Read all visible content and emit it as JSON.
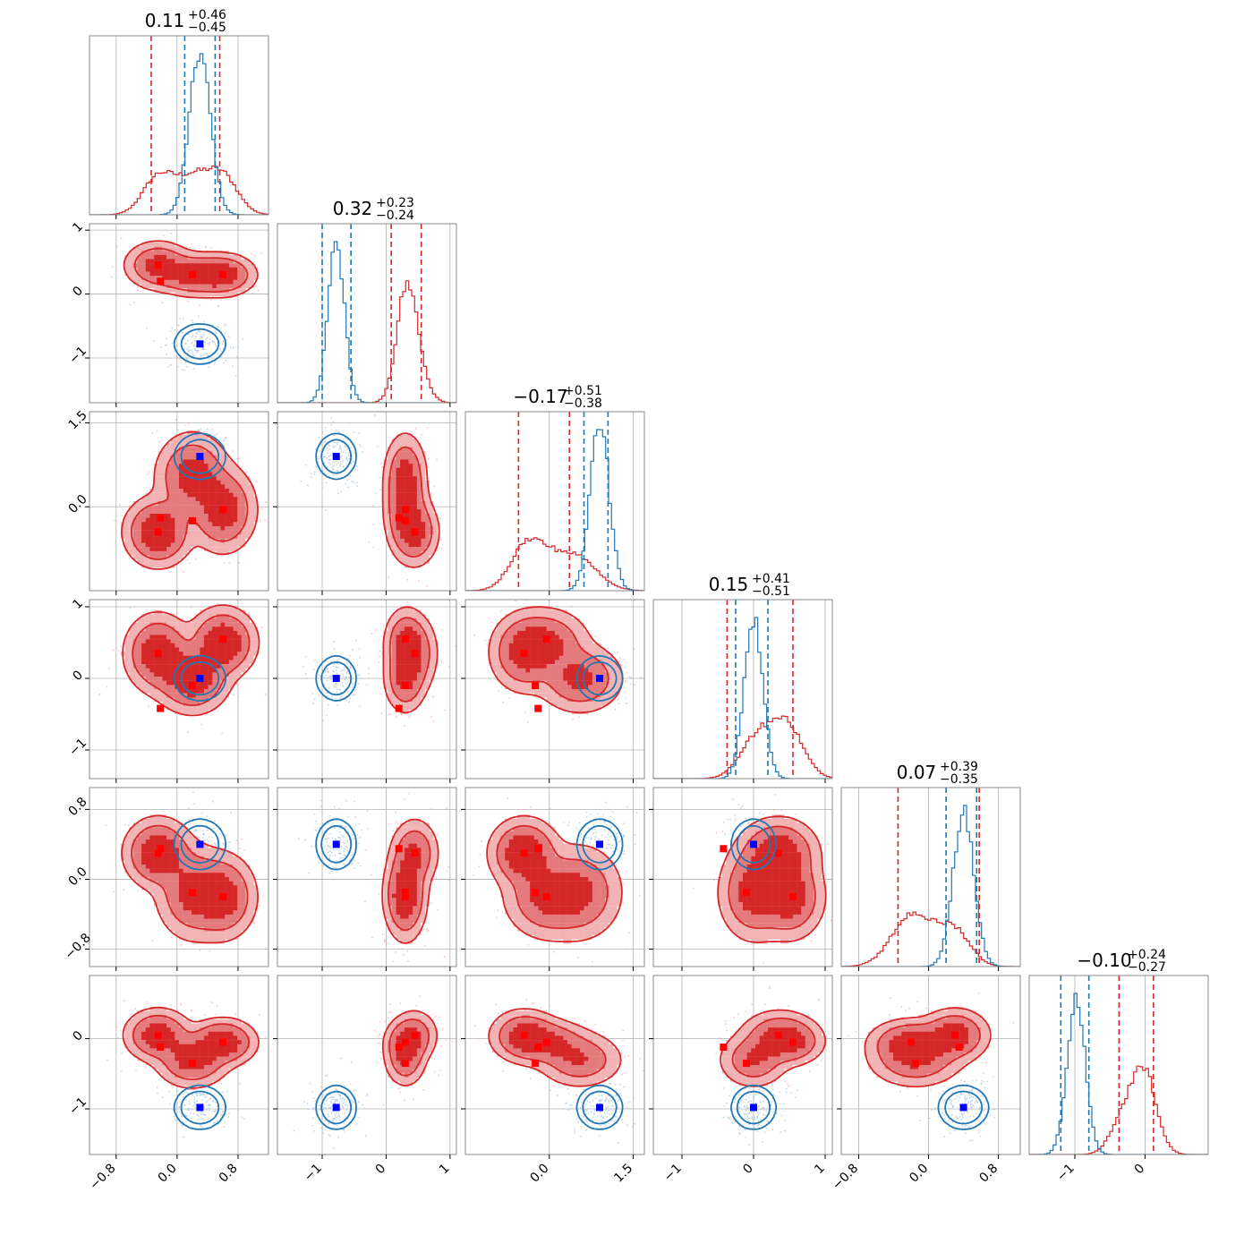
{
  "colors": {
    "red": "#d62728",
    "blue": "#1f77b4",
    "red_marker": "#ff0000",
    "blue_marker": "#0000ff",
    "grid": "#b0b0b0",
    "axis": "#000000"
  },
  "chart_data": {
    "type": "corner",
    "grid": true,
    "ranges": [
      [
        -1.15,
        1.2
      ],
      [
        -1.7,
        1.1
      ],
      [
        -1.5,
        1.7
      ],
      [
        -1.4,
        1.1
      ],
      [
        -1.0,
        1.05
      ],
      [
        -1.65,
        0.9
      ]
    ],
    "ticks": [
      [
        {
          "v": -0.8,
          "label": "−0.8"
        },
        {
          "v": 0.0,
          "label": "0.0"
        },
        {
          "v": 0.8,
          "label": "0.8"
        }
      ],
      [
        {
          "v": -1,
          "label": "−1"
        },
        {
          "v": 0,
          "label": "0"
        },
        {
          "v": 1,
          "label": "1"
        }
      ],
      [
        {
          "v": 0.0,
          "label": "0.0"
        },
        {
          "v": 1.5,
          "label": "1.5"
        }
      ],
      [
        {
          "v": -1,
          "label": "−1"
        },
        {
          "v": 0,
          "label": "0"
        },
        {
          "v": 1,
          "label": "1"
        }
      ],
      [
        {
          "v": -0.8,
          "label": "−0.8"
        },
        {
          "v": 0.0,
          "label": "0.0"
        },
        {
          "v": 0.8,
          "label": "0.8"
        }
      ],
      [
        {
          "v": -1,
          "label": "−1"
        },
        {
          "v": 0,
          "label": "0"
        }
      ]
    ],
    "titles": [
      {
        "median": "0.11",
        "plus": "+0.46",
        "minus": "−0.45"
      },
      {
        "median": "0.32",
        "plus": "+0.23",
        "minus": "−0.24"
      },
      {
        "median": "−0.17",
        "plus": "+0.51",
        "minus": "−0.38"
      },
      {
        "median": "0.15",
        "plus": "+0.41",
        "minus": "−0.51"
      },
      {
        "median": "0.07",
        "plus": "+0.39",
        "minus": "−0.35"
      },
      {
        "median": "−0.10",
        "plus": "+0.24",
        "minus": "−0.27"
      }
    ],
    "series": [
      {
        "color": "red",
        "filled": true,
        "quantiles": [
          [
            -0.34,
            0.56
          ],
          [
            0.08,
            0.55
          ],
          [
            -0.55,
            0.36
          ],
          [
            -0.37,
            0.55
          ],
          [
            -0.35,
            0.58
          ],
          [
            -0.37,
            0.12
          ]
        ],
        "components": [
          {
            "mean": [
              -0.25,
              0.45,
              -0.45,
              0.35,
              0.3,
              0.05
            ],
            "sd": [
              0.2,
              0.17,
              0.28,
              0.25,
              0.18,
              0.17
            ],
            "w": 0.33
          },
          {
            "mean": [
              0.2,
              0.3,
              0.55,
              0.0,
              -0.15,
              -0.3
            ],
            "sd": [
              0.22,
              0.15,
              0.35,
              0.22,
              0.25,
              0.18
            ],
            "w": 0.34
          },
          {
            "mean": [
              0.6,
              0.3,
              -0.05,
              0.5,
              -0.2,
              -0.05
            ],
            "sd": [
              0.2,
              0.15,
              0.35,
              0.22,
              0.22,
              0.15
            ],
            "w": 0.33
          }
        ],
        "markers": [
          [
            -0.25,
            0.45,
            -0.45,
            0.35,
            0.3,
            0.05
          ],
          [
            -0.22,
            0.2,
            -0.2,
            -0.42,
            0.35,
            -0.12
          ],
          [
            0.2,
            0.3,
            -0.25,
            -0.1,
            -0.15,
            -0.35
          ],
          [
            0.6,
            0.3,
            -0.05,
            0.55,
            -0.2,
            -0.05
          ]
        ]
      },
      {
        "color": "blue",
        "filled": false,
        "quantiles": [
          [
            0.1,
            0.5
          ],
          [
            -1.0,
            -0.55
          ],
          [
            0.62,
            1.05
          ],
          [
            -0.25,
            0.2
          ],
          [
            0.2,
            0.55
          ],
          [
            -1.2,
            -0.8
          ]
        ],
        "components": [
          {
            "mean": [
              0.3,
              -0.78,
              0.9,
              0.0,
              0.4,
              -0.98
            ],
            "sd": [
              0.14,
              0.13,
              0.17,
              0.13,
              0.12,
              0.13
            ],
            "w": 1.0
          }
        ],
        "markers": [
          [
            0.3,
            -0.78,
            0.9,
            0.0,
            0.4,
            -0.98
          ]
        ]
      }
    ]
  }
}
